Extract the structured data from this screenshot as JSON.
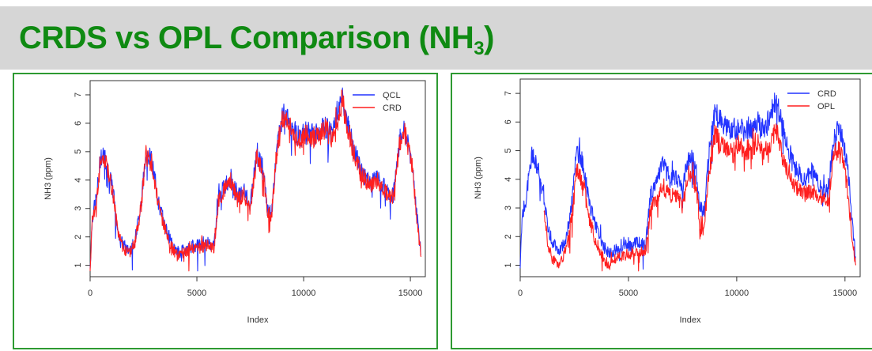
{
  "slide": {
    "title_main": "CRDS vs OPL Comparison (NH",
    "title_sub": "3",
    "title_end": ")",
    "title_color": "#0f8a12",
    "border_color": "#2e9a32"
  },
  "chart_data": [
    {
      "type": "line",
      "xlabel": "Index",
      "ylabel": "NH3 (ppm)",
      "xlim": [
        0,
        15700
      ],
      "ylim": [
        0.6,
        7.5
      ],
      "xticks": [
        "0",
        "5000",
        "10000",
        "15000"
      ],
      "yticks": [
        "1",
        "2",
        "3",
        "4",
        "5",
        "6",
        "7"
      ],
      "legend": "top-right",
      "series": [
        {
          "name": "QCL",
          "color": "#2233ff",
          "x": [
            0,
            100,
            300,
            500,
            700,
            900,
            1100,
            1300,
            1500,
            1800,
            2100,
            2400,
            2600,
            2900,
            3200,
            3500,
            3800,
            4100,
            4500,
            5000,
            5500,
            5800,
            6000,
            6300,
            6600,
            6900,
            7200,
            7500,
            7800,
            8100,
            8300,
            8500,
            8700,
            9000,
            9200,
            9500,
            9800,
            10100,
            10400,
            10700,
            11000,
            11300,
            11600,
            11800,
            12000,
            12300,
            12700,
            13100,
            13500,
            13900,
            14200,
            14500,
            14700,
            14900,
            15100,
            15300,
            15500
          ],
          "y": [
            0.9,
            2.7,
            3.4,
            4.9,
            4.8,
            4.2,
            3.5,
            2.2,
            1.8,
            1.5,
            1.9,
            3.2,
            5.0,
            4.7,
            3.2,
            2.4,
            1.8,
            1.4,
            1.6,
            1.7,
            1.8,
            1.7,
            3.3,
            3.8,
            4.1,
            3.4,
            3.6,
            3.1,
            4.9,
            4.4,
            3.0,
            2.8,
            4.8,
            6.3,
            6.2,
            5.8,
            5.5,
            5.7,
            5.6,
            5.6,
            5.9,
            5.6,
            6.2,
            6.9,
            6.2,
            5.2,
            4.3,
            3.9,
            4.1,
            3.6,
            3.5,
            5.4,
            5.8,
            5.3,
            4.5,
            2.8,
            1.4
          ]
        },
        {
          "name": "CRD",
          "color": "#ff1f1f",
          "x": [
            0,
            100,
            300,
            500,
            700,
            900,
            1100,
            1300,
            1500,
            1800,
            2100,
            2400,
            2600,
            2900,
            3200,
            3500,
            3800,
            4100,
            4500,
            5000,
            5500,
            5800,
            6000,
            6300,
            6600,
            6900,
            7200,
            7500,
            7800,
            8100,
            8300,
            8500,
            8700,
            9000,
            9200,
            9500,
            9800,
            10100,
            10400,
            10700,
            11000,
            11300,
            11600,
            11800,
            12000,
            12300,
            12700,
            13100,
            13500,
            13900,
            14200,
            14500,
            14700,
            14900,
            15100,
            15300,
            15500
          ],
          "y": [
            0.9,
            2.6,
            3.3,
            4.8,
            4.7,
            4.1,
            3.4,
            2.1,
            1.7,
            1.4,
            1.8,
            3.1,
            4.9,
            4.6,
            3.1,
            2.3,
            1.7,
            1.3,
            1.5,
            1.6,
            1.7,
            1.6,
            3.2,
            3.7,
            4.0,
            3.3,
            3.5,
            3.0,
            4.8,
            4.3,
            2.9,
            2.7,
            4.7,
            6.2,
            6.1,
            5.7,
            5.4,
            5.6,
            5.5,
            5.5,
            5.8,
            5.5,
            6.1,
            6.8,
            6.1,
            5.1,
            4.2,
            3.8,
            4.0,
            3.5,
            3.4,
            5.3,
            5.7,
            5.2,
            4.4,
            2.7,
            1.3
          ]
        }
      ]
    },
    {
      "type": "line",
      "xlabel": "Index",
      "ylabel": "NH3 (ppm)",
      "xlim": [
        0,
        15700
      ],
      "ylim": [
        0.6,
        7.5
      ],
      "xticks": [
        "0",
        "5000",
        "10000",
        "15000"
      ],
      "yticks": [
        "1",
        "2",
        "3",
        "4",
        "5",
        "6",
        "7"
      ],
      "legend": "top-right",
      "series": [
        {
          "name": "CRD",
          "color": "#2233ff",
          "x": [
            0,
            100,
            300,
            500,
            700,
            900,
            1100,
            1300,
            1500,
            1800,
            2100,
            2400,
            2600,
            2900,
            3200,
            3500,
            3800,
            4100,
            4500,
            5000,
            5500,
            5800,
            6000,
            6300,
            6600,
            6900,
            7200,
            7500,
            7800,
            8100,
            8300,
            8500,
            8700,
            9000,
            9200,
            9500,
            9800,
            10100,
            10400,
            10700,
            11000,
            11300,
            11600,
            11800,
            12000,
            12300,
            12700,
            13100,
            13500,
            13900,
            14200,
            14500,
            14700,
            14900,
            15100,
            15300,
            15500
          ],
          "y": [
            0.9,
            2.8,
            3.4,
            4.8,
            4.7,
            4.1,
            3.4,
            2.2,
            1.8,
            1.5,
            1.9,
            3.2,
            5.0,
            4.6,
            3.1,
            2.4,
            1.7,
            1.4,
            1.6,
            1.7,
            1.8,
            1.7,
            3.4,
            3.9,
            4.6,
            4.0,
            4.0,
            3.7,
            4.9,
            4.5,
            3.0,
            2.8,
            4.9,
            6.3,
            6.1,
            5.8,
            5.7,
            5.9,
            5.8,
            5.8,
            6.0,
            5.7,
            6.3,
            6.8,
            6.2,
            5.2,
            4.4,
            4.0,
            4.2,
            3.7,
            3.5,
            5.5,
            5.8,
            5.3,
            4.6,
            2.8,
            1.3
          ]
        },
        {
          "name": "OPL",
          "color": "#ff1f1f",
          "x": [
            1100,
            1300,
            1500,
            1800,
            2100,
            2400,
            2600,
            2900,
            3200,
            3500,
            3800,
            4100,
            4500,
            5000,
            5500,
            5800,
            6000,
            6300,
            6600,
            6900,
            7200,
            7500,
            7800,
            8100,
            8300,
            8500,
            8700,
            9000,
            9200,
            9500,
            9800,
            10100,
            10400,
            10700,
            11000,
            11300,
            11600,
            11800,
            12000,
            12300,
            12700,
            13100,
            13500,
            13900,
            14200,
            14500,
            14700,
            14900,
            15100,
            15300,
            15500
          ],
          "y": [
            2.8,
            1.6,
            1.2,
            1.0,
            1.5,
            2.7,
            4.3,
            3.9,
            2.6,
            1.8,
            1.3,
            1.0,
            1.3,
            1.4,
            1.5,
            1.5,
            2.9,
            3.3,
            3.8,
            3.4,
            3.5,
            3.1,
            4.3,
            3.9,
            2.5,
            2.4,
            4.1,
            5.6,
            5.3,
            5.0,
            4.9,
            5.2,
            5.0,
            5.1,
            5.4,
            4.9,
            5.4,
            5.8,
            5.1,
            4.4,
            3.8,
            3.5,
            3.6,
            3.4,
            3.2,
            4.9,
            5.1,
            4.6,
            3.7,
            2.2,
            1.0
          ]
        }
      ]
    }
  ]
}
